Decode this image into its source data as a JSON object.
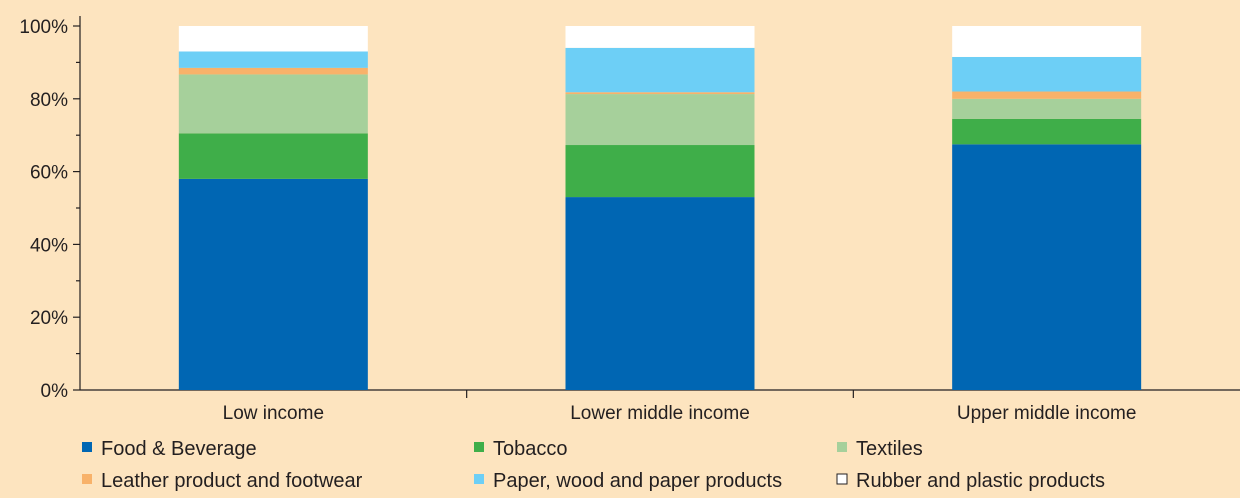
{
  "chart_data": {
    "type": "bar",
    "stacked": true,
    "categories": [
      "Low income",
      "Lower middle income",
      "Upper middle income"
    ],
    "series": [
      {
        "name": "Food & Beverage",
        "color": "#0066b3",
        "values": [
          58,
          53,
          67.5
        ]
      },
      {
        "name": "Tobacco",
        "color": "#3fae49",
        "values": [
          12.5,
          14.3,
          7
        ]
      },
      {
        "name": "Textiles",
        "color": "#a6d09b",
        "values": [
          16.2,
          14,
          5.5
        ]
      },
      {
        "name": "Leather product and footwear",
        "color": "#f8b26a",
        "values": [
          1.8,
          0.5,
          2
        ]
      },
      {
        "name": "Paper, wood and paper products",
        "color": "#6dcff6",
        "values": [
          4.5,
          12.2,
          9.5
        ]
      },
      {
        "name": "Rubber and plastic products",
        "color": "#ffffff",
        "values": [
          7,
          6,
          8.5
        ]
      }
    ],
    "y_ticks": [
      "0%",
      "20%",
      "40%",
      "60%",
      "80%",
      "100%"
    ],
    "ylim": [
      0,
      100
    ],
    "title": "",
    "xlabel": "",
    "ylabel": "",
    "grid": false,
    "legend_position": "bottom"
  }
}
